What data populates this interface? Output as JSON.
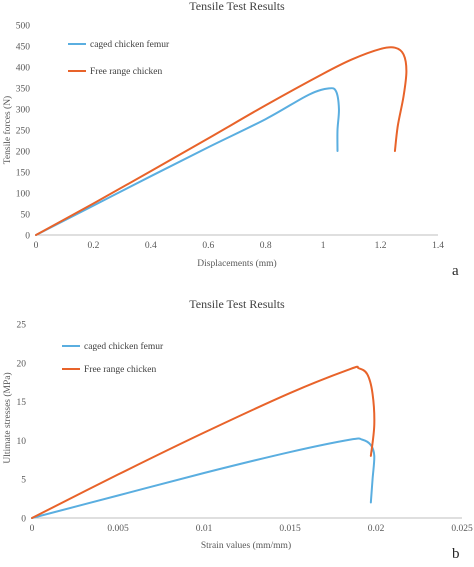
{
  "chart_data": [
    {
      "type": "line",
      "panel_letter": "a",
      "title": "Tensile Test Results",
      "xlabel": "Displacements (mm)",
      "ylabel": "Tensile forces (N)",
      "xlim": [
        0,
        1.4
      ],
      "ylim": [
        0,
        500
      ],
      "xticks": [
        0,
        0.2,
        0.4,
        0.6,
        0.8,
        1,
        1.2,
        1.4
      ],
      "yticks": [
        0,
        50,
        100,
        150,
        200,
        250,
        300,
        350,
        400,
        450,
        500
      ],
      "grid": false,
      "legend_position": "top-left",
      "series": [
        {
          "name": "caged chicken femur",
          "color": "#5aaee0",
          "points": [
            [
              0,
              0
            ],
            [
              0.2,
              70
            ],
            [
              0.4,
              140
            ],
            [
              0.6,
              209
            ],
            [
              0.8,
              276
            ],
            [
              0.95,
              334
            ],
            [
              1.02,
              349
            ],
            [
              1.045,
              342
            ],
            [
              1.055,
              300
            ],
            [
              1.05,
              250
            ],
            [
              1.05,
              200
            ]
          ]
        },
        {
          "name": "Free range chicken",
          "color": "#e8632a",
          "points": [
            [
              0,
              0
            ],
            [
              0.2,
              75
            ],
            [
              0.4,
              152
            ],
            [
              0.6,
              230
            ],
            [
              0.8,
              309
            ],
            [
              1.0,
              384
            ],
            [
              1.1,
              418
            ],
            [
              1.2,
              443
            ],
            [
              1.25,
              446
            ],
            [
              1.28,
              430
            ],
            [
              1.29,
              390
            ],
            [
              1.28,
              330
            ],
            [
              1.26,
              260
            ],
            [
              1.25,
              200
            ]
          ]
        }
      ]
    },
    {
      "type": "line",
      "panel_letter": "b",
      "title": "Tensile Test Results",
      "xlabel": "Strain values (mm/mm)",
      "ylabel": "Ultimate stresses (MPa)",
      "xlim": [
        0,
        0.025
      ],
      "ylim": [
        0,
        25
      ],
      "xticks": [
        0,
        0.005,
        0.01,
        0.015,
        0.02,
        0.025
      ],
      "yticks": [
        0,
        5,
        10,
        15,
        20,
        25
      ],
      "grid": false,
      "legend_position": "top-left",
      "series": [
        {
          "name": "caged chicken femur",
          "color": "#5aaee0",
          "points": [
            [
              0,
              0
            ],
            [
              0.005,
              2.9
            ],
            [
              0.01,
              5.8
            ],
            [
              0.015,
              8.5
            ],
            [
              0.0185,
              10.1
            ],
            [
              0.0192,
              10.1
            ],
            [
              0.0197,
              9.4
            ],
            [
              0.0199,
              8
            ],
            [
              0.0198,
              5
            ],
            [
              0.0197,
              2
            ]
          ]
        },
        {
          "name": "Free range chicken",
          "color": "#e8632a",
          "points": [
            [
              0,
              0
            ],
            [
              0.005,
              5.6
            ],
            [
              0.01,
              11
            ],
            [
              0.015,
              16.1
            ],
            [
              0.0185,
              19.2
            ],
            [
              0.019,
              19.3
            ],
            [
              0.0195,
              18.5
            ],
            [
              0.0198,
              16
            ],
            [
              0.0199,
              12
            ],
            [
              0.0197,
              8
            ]
          ]
        }
      ]
    }
  ]
}
